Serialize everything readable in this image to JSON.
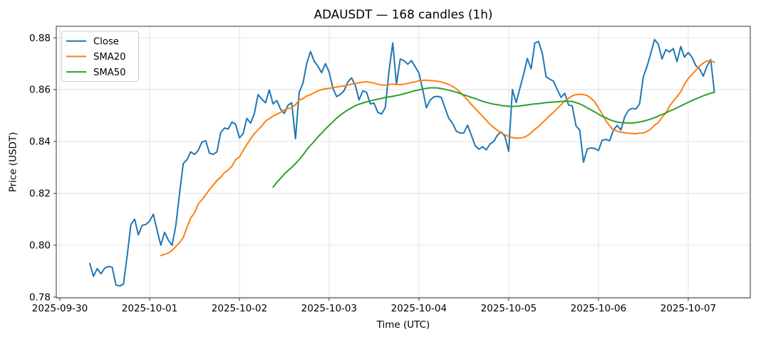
{
  "chart_data": {
    "type": "line",
    "title": "ADAUSDT — 168 candles (1h)",
    "xlabel": "Time (UTC)",
    "ylabel": "Price (USDT)",
    "n_candles": 168,
    "candle_interval": "1h",
    "grid": true,
    "legend_position": "upper left",
    "xlim": [
      -8.95,
      176.6
    ],
    "ylim": [
      0.7797,
      0.8844
    ],
    "x_ticks": [
      {
        "pos": -8,
        "label": "2025-09-30"
      },
      {
        "pos": 16,
        "label": "2025-10-01"
      },
      {
        "pos": 40,
        "label": "2025-10-02"
      },
      {
        "pos": 64,
        "label": "2025-10-03"
      },
      {
        "pos": 88,
        "label": "2025-10-04"
      },
      {
        "pos": 112,
        "label": "2025-10-05"
      },
      {
        "pos": 136,
        "label": "2025-10-06"
      },
      {
        "pos": 160,
        "label": "2025-10-07"
      }
    ],
    "y_ticks": [
      {
        "pos": 0.78,
        "label": "0.78"
      },
      {
        "pos": 0.8,
        "label": "0.80"
      },
      {
        "pos": 0.82,
        "label": "0.82"
      },
      {
        "pos": 0.84,
        "label": "0.84"
      },
      {
        "pos": 0.86,
        "label": "0.86"
      },
      {
        "pos": 0.88,
        "label": "0.88"
      }
    ],
    "series": [
      {
        "name": "Close",
        "color": "#1f77b4",
        "start_index": 0,
        "values": [
          0.793,
          0.788,
          0.791,
          0.789,
          0.7912,
          0.7918,
          0.7915,
          0.7847,
          0.7843,
          0.785,
          0.796,
          0.808,
          0.81,
          0.804,
          0.8077,
          0.808,
          0.8093,
          0.812,
          0.8057,
          0.8,
          0.805,
          0.802,
          0.8,
          0.8075,
          0.82,
          0.8315,
          0.833,
          0.836,
          0.835,
          0.8366,
          0.8398,
          0.8403,
          0.8355,
          0.835,
          0.836,
          0.8434,
          0.8452,
          0.8448,
          0.8475,
          0.8466,
          0.8414,
          0.843,
          0.8489,
          0.8471,
          0.8507,
          0.8581,
          0.8563,
          0.8549,
          0.8599,
          0.8545,
          0.8558,
          0.8525,
          0.8508,
          0.854,
          0.8549,
          0.841,
          0.859,
          0.8625,
          0.87,
          0.8747,
          0.871,
          0.869,
          0.8665,
          0.87,
          0.8668,
          0.8605,
          0.8573,
          0.8582,
          0.8596,
          0.863,
          0.8645,
          0.8616,
          0.856,
          0.8595,
          0.859,
          0.8545,
          0.8548,
          0.8512,
          0.8506,
          0.853,
          0.867,
          0.878,
          0.862,
          0.8718,
          0.8712,
          0.8698,
          0.8712,
          0.8688,
          0.8665,
          0.86,
          0.853,
          0.856,
          0.8572,
          0.8574,
          0.857,
          0.8528,
          0.8489,
          0.847,
          0.844,
          0.8432,
          0.8433,
          0.8463,
          0.8425,
          0.8385,
          0.837,
          0.838,
          0.8368,
          0.839,
          0.84,
          0.8425,
          0.8437,
          0.842,
          0.8362,
          0.86,
          0.855,
          0.8605,
          0.866,
          0.872,
          0.868,
          0.878,
          0.8785,
          0.874,
          0.865,
          0.864,
          0.8632,
          0.86,
          0.857,
          0.8586,
          0.8541,
          0.8537,
          0.846,
          0.8444,
          0.832,
          0.8371,
          0.8375,
          0.8373,
          0.8365,
          0.8405,
          0.8408,
          0.8403,
          0.8444,
          0.8462,
          0.8444,
          0.8494,
          0.852,
          0.8528,
          0.8525,
          0.8545,
          0.865,
          0.869,
          0.874,
          0.8793,
          0.8775,
          0.8718,
          0.8754,
          0.8745,
          0.8758,
          0.8708,
          0.8766,
          0.8725,
          0.8743,
          0.8725,
          0.8693,
          0.868,
          0.8652,
          0.869,
          0.8716,
          0.859
        ]
      },
      {
        "name": "SMA20",
        "color": "#ff7f0e",
        "start_index": 19,
        "values": [
          0.796,
          0.7965,
          0.797,
          0.798,
          0.7995,
          0.801,
          0.803,
          0.807,
          0.8105,
          0.8125,
          0.816,
          0.8175,
          0.8195,
          0.8215,
          0.8232,
          0.825,
          0.8262,
          0.828,
          0.829,
          0.8305,
          0.833,
          0.834,
          0.8365,
          0.8388,
          0.841,
          0.843,
          0.8445,
          0.846,
          0.8479,
          0.8488,
          0.8498,
          0.8505,
          0.8512,
          0.8522,
          0.8527,
          0.853,
          0.8542,
          0.856,
          0.8565,
          0.8575,
          0.858,
          0.8588,
          0.8595,
          0.86,
          0.8603,
          0.8605,
          0.8608,
          0.861,
          0.8612,
          0.8615,
          0.8618,
          0.8621,
          0.8624,
          0.8626,
          0.8629,
          0.863,
          0.8628,
          0.8625,
          0.8621,
          0.8618,
          0.8617,
          0.862,
          0.8621,
          0.862,
          0.8619,
          0.8621,
          0.8624,
          0.8627,
          0.863,
          0.8634,
          0.8636,
          0.8636,
          0.8635,
          0.8634,
          0.8632,
          0.8629,
          0.8625,
          0.862,
          0.8612,
          0.8603,
          0.859,
          0.8575,
          0.856,
          0.8543,
          0.8528,
          0.8513,
          0.8497,
          0.8482,
          0.8466,
          0.8454,
          0.8443,
          0.8433,
          0.8426,
          0.842,
          0.8415,
          0.8413,
          0.8413,
          0.8416,
          0.8422,
          0.8434,
          0.8447,
          0.8458,
          0.8472,
          0.8486,
          0.85,
          0.8513,
          0.8527,
          0.8542,
          0.8556,
          0.8566,
          0.8576,
          0.8581,
          0.8582,
          0.8581,
          0.8577,
          0.8567,
          0.8553,
          0.853,
          0.8507,
          0.848,
          0.846,
          0.8445,
          0.844,
          0.8436,
          0.8434,
          0.8432,
          0.8431,
          0.843,
          0.8432,
          0.8433,
          0.8439,
          0.8448,
          0.8463,
          0.8473,
          0.8493,
          0.851,
          0.8536,
          0.8555,
          0.8572,
          0.8592,
          0.862,
          0.8643,
          0.8658,
          0.8674,
          0.869,
          0.8702,
          0.871,
          0.8712,
          0.8705
        ]
      },
      {
        "name": "SMA50",
        "color": "#2ca02c",
        "start_index": 49,
        "values": [
          0.8224,
          0.8242,
          0.8258,
          0.8274,
          0.8288,
          0.83,
          0.8315,
          0.833,
          0.8348,
          0.8368,
          0.8385,
          0.84,
          0.8418,
          0.8432,
          0.8448,
          0.8462,
          0.8476,
          0.849,
          0.8502,
          0.8512,
          0.8522,
          0.853,
          0.8538,
          0.8544,
          0.8548,
          0.8553,
          0.8556,
          0.856,
          0.8563,
          0.8566,
          0.857,
          0.8572,
          0.8574,
          0.8577,
          0.858,
          0.8584,
          0.8588,
          0.8592,
          0.8596,
          0.8599,
          0.8602,
          0.8605,
          0.8607,
          0.8607,
          0.8606,
          0.8604,
          0.8601,
          0.8598,
          0.8594,
          0.859,
          0.8585,
          0.858,
          0.8575,
          0.857,
          0.8566,
          0.856,
          0.8555,
          0.8551,
          0.8547,
          0.8544,
          0.8542,
          0.8539,
          0.8537,
          0.8536,
          0.8535,
          0.8536,
          0.8537,
          0.8539,
          0.8541,
          0.8543,
          0.8545,
          0.8546,
          0.8548,
          0.855,
          0.8551,
          0.8552,
          0.8553,
          0.8554,
          0.8555,
          0.8555,
          0.8554,
          0.855,
          0.8545,
          0.8538,
          0.853,
          0.8522,
          0.8514,
          0.8505,
          0.8497,
          0.8491,
          0.8484,
          0.8479,
          0.8475,
          0.8473,
          0.8472,
          0.8471,
          0.8471,
          0.8473,
          0.8475,
          0.8478,
          0.8482,
          0.8487,
          0.8492,
          0.8498,
          0.8504,
          0.851,
          0.8517,
          0.8523,
          0.853,
          0.8537,
          0.8544,
          0.8551,
          0.8558,
          0.8564,
          0.857,
          0.8576,
          0.8581,
          0.8586,
          0.859
        ]
      }
    ]
  }
}
